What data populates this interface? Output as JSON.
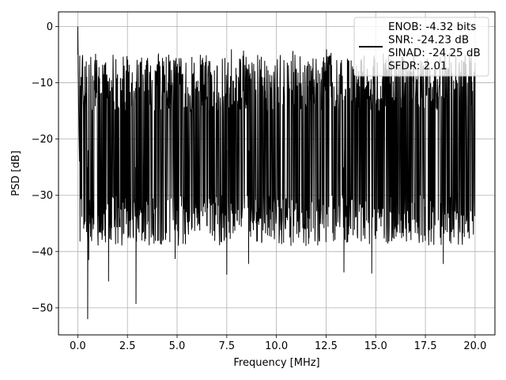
{
  "chart_data": {
    "type": "line",
    "title": "",
    "xlabel": "Frequency [MHz]",
    "ylabel": "PSD [dB]",
    "xlim": [
      -0.97,
      21.0
    ],
    "ylim": [
      -54.8,
      2.6
    ],
    "xticks": [
      0.0,
      2.5,
      5.0,
      7.5,
      10.0,
      12.5,
      15.0,
      17.5,
      20.0
    ],
    "xtick_labels": [
      "0.0",
      "2.5",
      "5.0",
      "7.5",
      "10.0",
      "12.5",
      "15.0",
      "17.5",
      "20.0"
    ],
    "yticks": [
      0,
      -10,
      -20,
      -30,
      -40,
      -50
    ],
    "ytick_labels": [
      "0",
      "−10",
      "−20",
      "−30",
      "−40",
      "−50"
    ],
    "grid": true,
    "legend": {
      "placement": "top-right",
      "entries": [
        "ENOB: -4.32 bits",
        "SNR: -24.23 dB",
        "SINAD: -24.25 dB",
        "SFDR: 2.01"
      ]
    },
    "series": [
      {
        "color": "#000000",
        "x_range": [
          0.0,
          20.0
        ],
        "peaks": [
          {
            "x": 0.0,
            "y": 0.0
          },
          {
            "x": 0.5,
            "y": -52.0
          },
          {
            "x": 0.55,
            "y": -41.5
          },
          {
            "x": 1.55,
            "y": -45.3
          },
          {
            "x": 2.93,
            "y": -49.3
          },
          {
            "x": 4.9,
            "y": -41.3
          },
          {
            "x": 7.5,
            "y": -44.1
          },
          {
            "x": 8.6,
            "y": -42.2
          },
          {
            "x": 13.4,
            "y": -43.7
          },
          {
            "x": 14.8,
            "y": -43.9
          },
          {
            "x": 18.4,
            "y": -42.2
          }
        ],
        "typical_range_db": [
          -35,
          -5
        ]
      }
    ]
  }
}
